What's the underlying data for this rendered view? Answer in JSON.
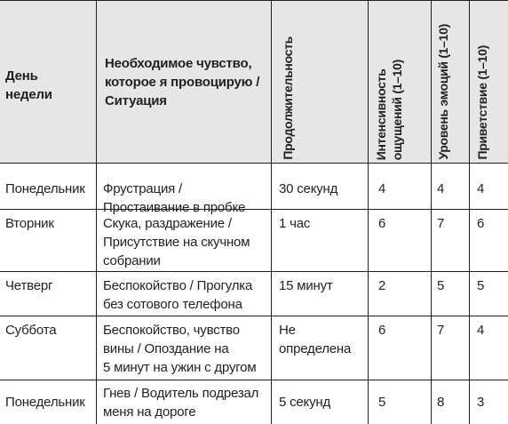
{
  "headers": {
    "day": "День\nнедели",
    "feeling": "Необходимое чувство,\nкоторое я провоцирую /\nСитуация",
    "duration": "Продолжительность",
    "sensation": "Интенсивность\nощущений (1–10)",
    "emotion": "Уровень эмоций (1–10)",
    "greeting": "Приветствие (1–10)"
  },
  "rows": [
    {
      "day": "Понедельник",
      "feeling": "Фрустрация /\nПростаивание в пробке",
      "duration": "30 секунд",
      "sensation": "4",
      "emotion": "4",
      "greeting": "4"
    },
    {
      "day": "Вторник",
      "feeling": "Скука, раздражение /\nПрисутствие на скучном\nсобрании",
      "duration": "1 час",
      "sensation": "6",
      "emotion": "7",
      "greeting": "6"
    },
    {
      "day": "Четверг",
      "feeling": "Беспокойство / Прогулка\nбез сотового телефона",
      "duration": "15 минут",
      "sensation": "2",
      "emotion": "5",
      "greeting": "5"
    },
    {
      "day": "Суббота",
      "feeling": "Беспокойство, чувство\nвины / Опоздание на\n5 минут на ужин с другом",
      "duration": "Не\nопределена",
      "sensation": "6",
      "emotion": "7",
      "greeting": "4"
    },
    {
      "day": "Понедельник",
      "feeling": "Гнев / Водитель подрезал\nменя на дороге",
      "duration": "5 секунд",
      "sensation": "5",
      "emotion": "8",
      "greeting": "3"
    }
  ]
}
